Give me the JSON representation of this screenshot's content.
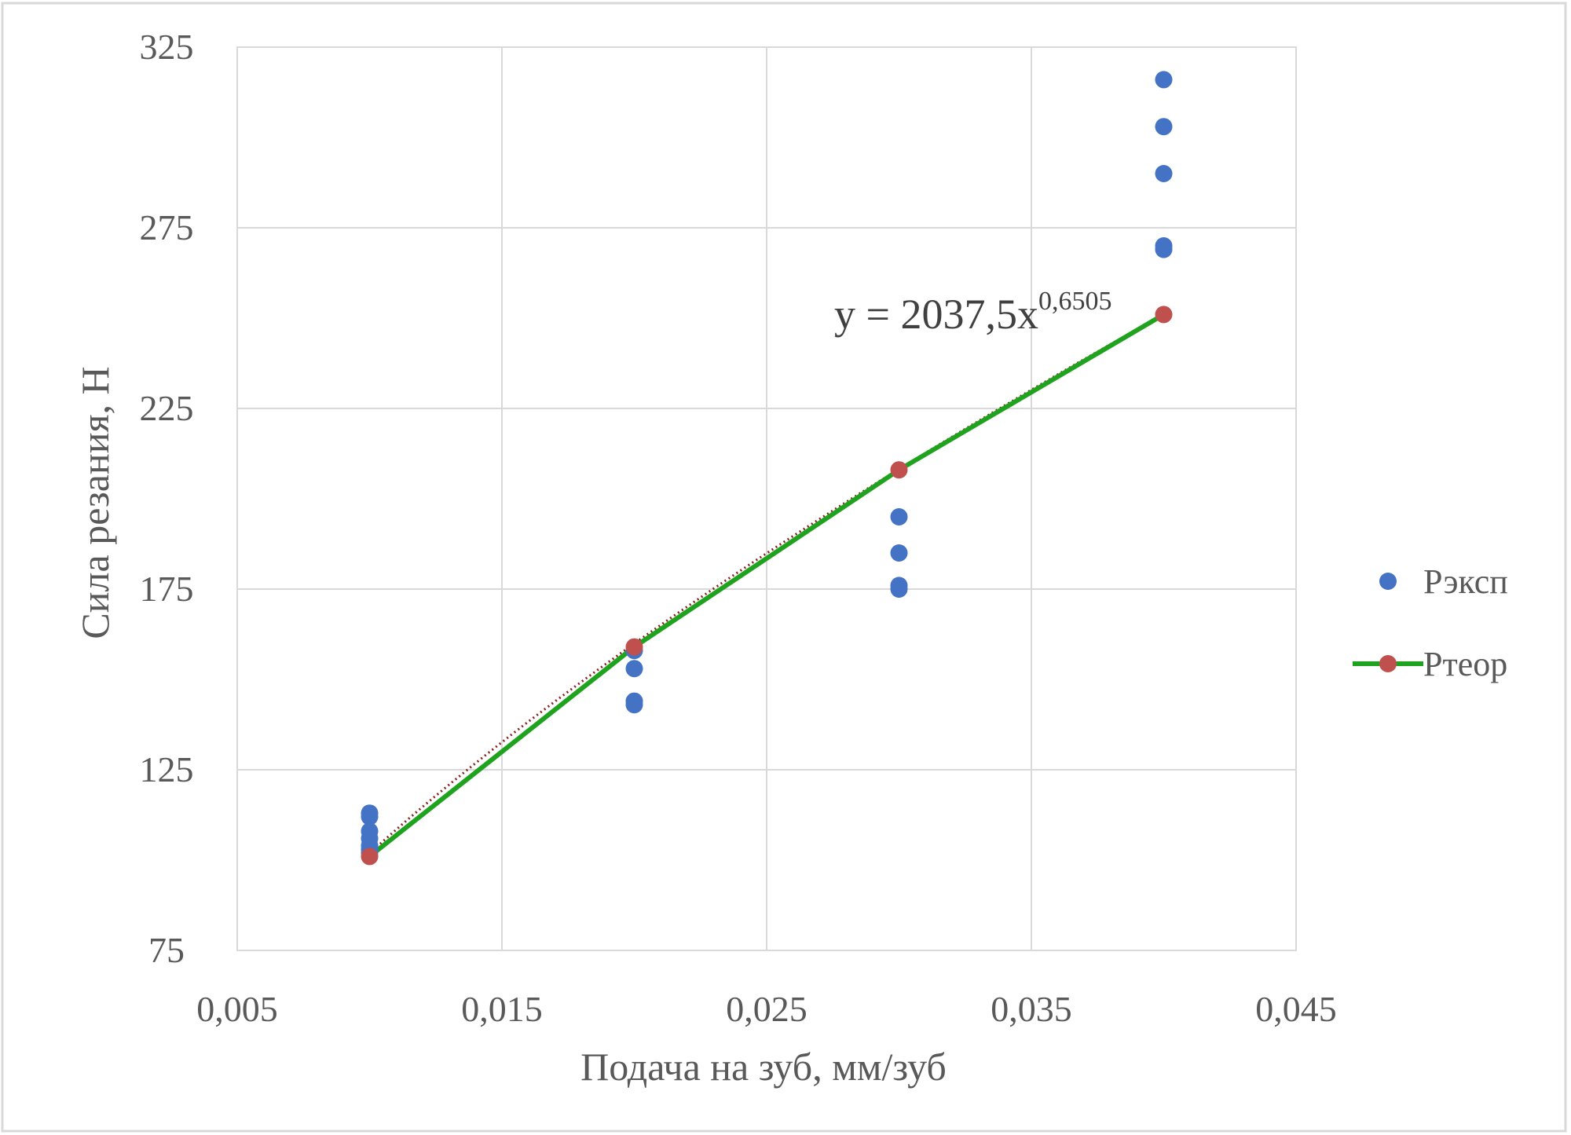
{
  "chart_data": {
    "type": "scatter",
    "xlabel": "Подача на зуб, мм/зуб",
    "ylabel": "Сила резания, Н",
    "xlim": [
      0.005,
      0.045
    ],
    "ylim": [
      75,
      325
    ],
    "x_ticks": [
      0.005,
      0.015,
      0.025,
      0.035,
      0.045
    ],
    "x_tick_labels": [
      "0,005",
      "0,015",
      "0,025",
      "0,035",
      "0,045"
    ],
    "y_ticks": [
      75,
      125,
      175,
      225,
      275,
      325
    ],
    "y_tick_labels": [
      "75",
      "125",
      "175",
      "225",
      "275",
      "325"
    ],
    "grid": true,
    "legend_position": "right",
    "series": [
      {
        "name": "Рэксп",
        "kind": "markers",
        "color": "#4472c4",
        "points": [
          [
            0.01,
            113
          ],
          [
            0.01,
            112
          ],
          [
            0.01,
            108
          ],
          [
            0.01,
            106
          ],
          [
            0.01,
            104
          ],
          [
            0.01,
            103
          ],
          [
            0.01,
            102
          ],
          [
            0.02,
            158
          ],
          [
            0.02,
            153
          ],
          [
            0.02,
            144
          ],
          [
            0.02,
            143
          ],
          [
            0.03,
            195
          ],
          [
            0.03,
            185
          ],
          [
            0.03,
            176
          ],
          [
            0.03,
            175
          ],
          [
            0.04,
            316
          ],
          [
            0.04,
            303
          ],
          [
            0.04,
            290
          ],
          [
            0.04,
            270
          ],
          [
            0.04,
            269
          ]
        ]
      },
      {
        "name": "Ртеор",
        "kind": "line-markers",
        "line_color": "#1fa31f",
        "marker_color": "#c0504d",
        "points": [
          [
            0.01,
            101
          ],
          [
            0.02,
            159
          ],
          [
            0.03,
            208
          ],
          [
            0.04,
            251
          ]
        ]
      }
    ],
    "trendline": {
      "type": "power",
      "coef": 2037.5,
      "exponent": 0.6505,
      "color": "#8b2020",
      "equation": {
        "main": "y = 2037,5x",
        "superscript": "0,6505"
      }
    }
  }
}
